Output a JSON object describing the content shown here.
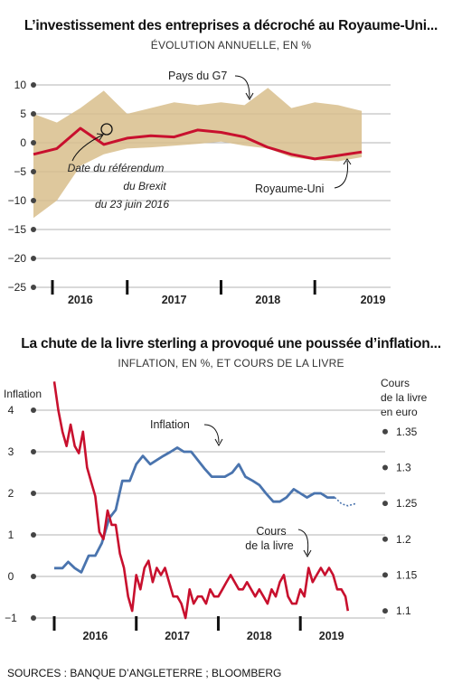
{
  "chart_data": [
    {
      "type": "area",
      "title": "L’investissement des entreprises a décroché au Royaume-Uni...",
      "subtitle": "ÉVOLUTION ANNUELLE, EN %",
      "ylim": [
        -25,
        10
      ],
      "yticks": [
        10,
        5,
        0,
        -5,
        -10,
        -15,
        -20,
        -25
      ],
      "ytick_labels": [
        "10",
        "5",
        "0",
        "−5",
        "−10",
        "−15",
        "−20",
        "−25"
      ],
      "xlim": [
        2015.5,
        2019.25
      ],
      "xtick_breaks": [
        2015.5,
        2016.5,
        2017.5,
        2018.5
      ],
      "xtick_labels": [
        {
          "label": "2016",
          "x": 2016.0
        },
        {
          "label": "2017",
          "x": 2017.0
        },
        {
          "label": "2018",
          "x": 2018.0
        },
        {
          "label": "2019",
          "x": 2019.12
        }
      ],
      "grid": true,
      "series": [
        {
          "name": "Pays du G7",
          "kind": "band",
          "color": "#d8be8c",
          "x": [
            2015.5,
            2015.75,
            2016.0,
            2016.25,
            2016.5,
            2016.75,
            2017.0,
            2017.25,
            2017.5,
            2017.75,
            2018.0,
            2018.25,
            2018.5,
            2018.75,
            2019.0
          ],
          "upper": [
            5,
            3.5,
            6,
            9,
            5,
            6,
            7,
            6.5,
            7,
            6.5,
            9.5,
            6,
            7,
            6.5,
            5.5
          ],
          "lower": [
            -13,
            -10,
            -4,
            -2,
            -1,
            -0.8,
            -0.5,
            -0.2,
            0.2,
            -0.5,
            -1,
            -2.5,
            -3,
            -3.2,
            -2.5
          ]
        },
        {
          "name": "Royaume-Uni",
          "kind": "line",
          "color": "#c8102e",
          "x": [
            2015.5,
            2015.75,
            2016.0,
            2016.25,
            2016.5,
            2016.75,
            2017.0,
            2017.25,
            2017.5,
            2017.75,
            2018.0,
            2018.25,
            2018.5,
            2018.75,
            2019.0
          ],
          "values": [
            -2,
            -1,
            2.5,
            -0.3,
            0.8,
            1.2,
            1.0,
            2.2,
            1.8,
            1.0,
            -0.8,
            -2.0,
            -2.8,
            -2.2,
            -1.6
          ]
        }
      ],
      "annotations": [
        {
          "text": "Pays du G7"
        },
        {
          "text": "Date du référendum"
        },
        {
          "text": "du Brexit"
        },
        {
          "text": "du 23 juin 2016"
        },
        {
          "text": "Royaume-Uni"
        }
      ]
    },
    {
      "type": "line",
      "title": "La chute de la livre sterling a provoqué une poussée d’inflation...",
      "subtitle": "INFLATION, EN %, ET COURS DE LA LIVRE",
      "left_axis": {
        "label": "Inflation",
        "ylim": [
          -1,
          4
        ],
        "ticks": [
          4,
          3,
          2,
          1,
          0,
          -1
        ],
        "tick_labels": [
          "4",
          "3",
          "2",
          "1",
          "0",
          "−1"
        ]
      },
      "right_axis": {
        "label_lines": [
          "Cours",
          "de la livre",
          "en euro"
        ],
        "ylim": [
          1.09,
          1.38
        ],
        "ticks": [
          1.35,
          1.3,
          1.25,
          1.2,
          1.15,
          1.1
        ],
        "tick_labels": [
          "1.35",
          "1.3",
          "1.25",
          "1.2",
          "1.15",
          "1.1"
        ]
      },
      "xlim": [
        2015.5,
        2019.6
      ],
      "xtick_breaks": [
        2015.5,
        2016.5,
        2017.5,
        2018.5
      ],
      "xtick_labels": [
        {
          "label": "2016",
          "x": 2016.0
        },
        {
          "label": "2017",
          "x": 2017.0
        },
        {
          "label": "2018",
          "x": 2018.0
        },
        {
          "label": "2019",
          "x": 2018.88
        }
      ],
      "grid": true,
      "series": [
        {
          "name": "Inflation",
          "axis": "left",
          "color": "#4a74ae",
          "x": [
            2015.5,
            2015.6,
            2015.67,
            2015.75,
            2015.83,
            2015.92,
            2016.0,
            2016.08,
            2016.17,
            2016.25,
            2016.33,
            2016.42,
            2016.5,
            2016.58,
            2016.67,
            2016.75,
            2016.83,
            2016.92,
            2017.0,
            2017.08,
            2017.17,
            2017.25,
            2017.33,
            2017.42,
            2017.5,
            2017.58,
            2017.67,
            2017.75,
            2017.83,
            2017.92,
            2018.0,
            2018.08,
            2018.17,
            2018.25,
            2018.33,
            2018.42,
            2018.5,
            2018.58,
            2018.67,
            2018.75,
            2018.83,
            2018.92
          ],
          "values": [
            0.2,
            0.2,
            0.35,
            0.2,
            0.1,
            0.5,
            0.5,
            0.8,
            1.4,
            1.6,
            2.3,
            2.3,
            2.7,
            2.9,
            2.7,
            2.8,
            2.9,
            3.0,
            3.1,
            3.0,
            3.0,
            2.8,
            2.6,
            2.4,
            2.4,
            2.4,
            2.5,
            2.7,
            2.4,
            2.3,
            2.2,
            2.0,
            1.8,
            1.8,
            1.9,
            2.1,
            2.0,
            1.9,
            2.0,
            2.0,
            1.9,
            1.9
          ],
          "forecast_x": [
            2018.92,
            2019.0,
            2019.08,
            2019.17
          ],
          "forecast_values": [
            1.9,
            1.75,
            1.7,
            1.75
          ]
        },
        {
          "name": "Cours de la livre",
          "axis": "right",
          "color": "#c8102e",
          "x": [
            2015.5,
            2015.55,
            2015.6,
            2015.65,
            2015.7,
            2015.75,
            2015.8,
            2015.85,
            2015.9,
            2015.95,
            2016.0,
            2016.05,
            2016.1,
            2016.15,
            2016.2,
            2016.25,
            2016.3,
            2016.35,
            2016.4,
            2016.45,
            2016.5,
            2016.55,
            2016.6,
            2016.65,
            2016.7,
            2016.75,
            2016.8,
            2016.85,
            2016.9,
            2016.95,
            2017.0,
            2017.05,
            2017.1,
            2017.15,
            2017.2,
            2017.25,
            2017.3,
            2017.35,
            2017.4,
            2017.45,
            2017.5,
            2017.55,
            2017.6,
            2017.65,
            2017.7,
            2017.75,
            2017.8,
            2017.85,
            2017.9,
            2017.95,
            2018.0,
            2018.05,
            2018.1,
            2018.15,
            2018.2,
            2018.25,
            2018.3,
            2018.35,
            2018.4,
            2018.45,
            2018.5,
            2018.55,
            2018.6,
            2018.65,
            2018.7,
            2018.75,
            2018.8,
            2018.85,
            2018.9,
            2018.95,
            2019.0,
            2019.05,
            2019.08
          ],
          "values": [
            1.42,
            1.38,
            1.35,
            1.33,
            1.36,
            1.33,
            1.32,
            1.35,
            1.3,
            1.28,
            1.26,
            1.21,
            1.2,
            1.24,
            1.22,
            1.22,
            1.18,
            1.16,
            1.12,
            1.1,
            1.15,
            1.13,
            1.16,
            1.17,
            1.14,
            1.16,
            1.15,
            1.16,
            1.14,
            1.12,
            1.12,
            1.11,
            1.09,
            1.13,
            1.11,
            1.12,
            1.12,
            1.11,
            1.13,
            1.12,
            1.12,
            1.13,
            1.14,
            1.15,
            1.14,
            1.13,
            1.13,
            1.14,
            1.13,
            1.12,
            1.13,
            1.12,
            1.11,
            1.13,
            1.12,
            1.14,
            1.15,
            1.12,
            1.11,
            1.11,
            1.13,
            1.12,
            1.16,
            1.14,
            1.15,
            1.16,
            1.15,
            1.16,
            1.15,
            1.13,
            1.13,
            1.12,
            1.1
          ]
        }
      ],
      "annotations": [
        {
          "text": "Inflation"
        },
        {
          "text": "Cours"
        },
        {
          "text": "de la livre"
        }
      ]
    }
  ],
  "colors": {
    "g7_band": "#d8be8c",
    "uk_line": "#c8102e",
    "inflation_line": "#4a74ae",
    "grid": "#9a9a9a",
    "axis_dot": "#444444"
  },
  "footer": {
    "sources": "SOURCES : BANQUE D’ANGLETERRE ; BLOOMBERG"
  }
}
